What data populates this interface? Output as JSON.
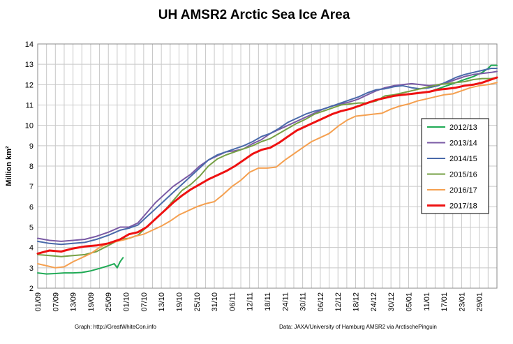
{
  "chart_data": {
    "type": "line",
    "title": "UH AMSR2 Arctic Sea Ice Area",
    "xlabel": "",
    "ylabel": "Million km²",
    "ylim": [
      2,
      14
    ],
    "yticks": [
      "2",
      "3",
      "4",
      "5",
      "6",
      "7",
      "8",
      "9",
      "10",
      "11",
      "12",
      "13",
      "14"
    ],
    "x_tick_labels": [
      "01/09",
      "07/09",
      "13/09",
      "19/09",
      "25/09",
      "01/10",
      "07/10",
      "13/10",
      "19/10",
      "25/10",
      "31/10",
      "06/11",
      "12/11",
      "18/11",
      "24/11",
      "30/11",
      "06/12",
      "12/12",
      "18/12",
      "24/12",
      "30/12",
      "05/01",
      "11/01",
      "17/01",
      "23/01",
      "29/01"
    ],
    "x_unit": "days since 01/09 (tick every 6 days)",
    "xlim": [
      0,
      156
    ],
    "grid": true,
    "legend_position": "right",
    "series": [
      {
        "name": "2012/13",
        "color": "#1faa55",
        "width": 2,
        "points": [
          [
            0,
            2.75
          ],
          [
            3,
            2.7
          ],
          [
            6,
            2.72
          ],
          [
            9,
            2.75
          ],
          [
            12,
            2.75
          ],
          [
            15,
            2.77
          ],
          [
            18,
            2.85
          ],
          [
            21,
            2.97
          ],
          [
            24,
            3.1
          ],
          [
            26,
            3.2
          ],
          [
            27,
            3.0
          ],
          [
            28,
            3.3
          ],
          [
            29,
            3.5
          ],
          [
            null,
            null
          ],
          [
            129,
            11.6
          ],
          [
            133,
            11.65
          ],
          [
            136,
            11.8
          ],
          [
            139,
            11.95
          ],
          [
            142,
            12.1
          ],
          [
            145,
            12.25
          ],
          [
            148,
            12.4
          ],
          [
            151,
            12.6
          ],
          [
            153,
            12.8
          ],
          [
            154,
            12.95
          ],
          [
            156,
            12.95
          ]
        ]
      },
      {
        "name": "2013/14",
        "color": "#7a5aa5",
        "width": 2,
        "points": [
          [
            0,
            4.45
          ],
          [
            4,
            4.35
          ],
          [
            8,
            4.3
          ],
          [
            12,
            4.35
          ],
          [
            16,
            4.4
          ],
          [
            20,
            4.55
          ],
          [
            24,
            4.75
          ],
          [
            28,
            5.0
          ],
          [
            31,
            5.0
          ],
          [
            34,
            5.2
          ],
          [
            37,
            5.7
          ],
          [
            40,
            6.2
          ],
          [
            43,
            6.6
          ],
          [
            46,
            7.0
          ],
          [
            49,
            7.3
          ],
          [
            52,
            7.6
          ],
          [
            55,
            8.0
          ],
          [
            58,
            8.3
          ],
          [
            61,
            8.5
          ],
          [
            64,
            8.7
          ],
          [
            67,
            8.75
          ],
          [
            70,
            8.85
          ],
          [
            73,
            9.1
          ],
          [
            76,
            9.3
          ],
          [
            79,
            9.6
          ],
          [
            82,
            9.8
          ],
          [
            85,
            10.0
          ],
          [
            88,
            10.2
          ],
          [
            91,
            10.4
          ],
          [
            94,
            10.6
          ],
          [
            97,
            10.8
          ],
          [
            100,
            10.95
          ],
          [
            103,
            11.05
          ],
          [
            106,
            11.15
          ],
          [
            109,
            11.3
          ],
          [
            112,
            11.5
          ],
          [
            115,
            11.7
          ],
          [
            118,
            11.85
          ],
          [
            121,
            11.95
          ],
          [
            124,
            12.0
          ],
          [
            127,
            12.05
          ],
          [
            130,
            12.0
          ],
          [
            133,
            11.95
          ],
          [
            136,
            12.0
          ],
          [
            139,
            12.1
          ],
          [
            142,
            12.25
          ],
          [
            145,
            12.4
          ],
          [
            148,
            12.5
          ],
          [
            151,
            12.55
          ],
          [
            154,
            12.6
          ],
          [
            156,
            12.65
          ]
        ]
      },
      {
        "name": "2014/15",
        "color": "#4a6aaa",
        "width": 2,
        "points": [
          [
            0,
            4.3
          ],
          [
            4,
            4.2
          ],
          [
            8,
            4.15
          ],
          [
            12,
            4.2
          ],
          [
            16,
            4.25
          ],
          [
            20,
            4.4
          ],
          [
            24,
            4.6
          ],
          [
            28,
            4.85
          ],
          [
            31,
            4.95
          ],
          [
            34,
            5.1
          ],
          [
            37,
            5.5
          ],
          [
            40,
            5.9
          ],
          [
            43,
            6.3
          ],
          [
            46,
            6.7
          ],
          [
            49,
            7.1
          ],
          [
            52,
            7.5
          ],
          [
            55,
            7.9
          ],
          [
            58,
            8.3
          ],
          [
            61,
            8.55
          ],
          [
            64,
            8.7
          ],
          [
            67,
            8.85
          ],
          [
            70,
            9.0
          ],
          [
            73,
            9.2
          ],
          [
            76,
            9.45
          ],
          [
            79,
            9.6
          ],
          [
            82,
            9.85
          ],
          [
            85,
            10.15
          ],
          [
            88,
            10.35
          ],
          [
            91,
            10.55
          ],
          [
            94,
            10.7
          ],
          [
            97,
            10.8
          ],
          [
            100,
            10.95
          ],
          [
            103,
            11.1
          ],
          [
            106,
            11.25
          ],
          [
            109,
            11.4
          ],
          [
            112,
            11.6
          ],
          [
            115,
            11.75
          ],
          [
            118,
            11.8
          ],
          [
            121,
            11.9
          ],
          [
            124,
            11.95
          ],
          [
            127,
            11.85
          ],
          [
            130,
            11.8
          ],
          [
            133,
            11.85
          ],
          [
            136,
            11.95
          ],
          [
            139,
            12.15
          ],
          [
            142,
            12.35
          ],
          [
            145,
            12.5
          ],
          [
            148,
            12.6
          ],
          [
            151,
            12.7
          ],
          [
            154,
            12.8
          ],
          [
            156,
            12.8
          ]
        ]
      },
      {
        "name": "2015/16",
        "color": "#76a045",
        "width": 2,
        "points": [
          [
            0,
            3.65
          ],
          [
            4,
            3.6
          ],
          [
            8,
            3.55
          ],
          [
            12,
            3.6
          ],
          [
            16,
            3.65
          ],
          [
            20,
            3.8
          ],
          [
            24,
            4.1
          ],
          [
            28,
            4.4
          ],
          [
            31,
            4.45
          ],
          [
            34,
            4.6
          ],
          [
            37,
            5.0
          ],
          [
            40,
            5.4
          ],
          [
            43,
            5.8
          ],
          [
            46,
            6.3
          ],
          [
            49,
            6.8
          ],
          [
            52,
            7.1
          ],
          [
            55,
            7.5
          ],
          [
            58,
            8.0
          ],
          [
            61,
            8.35
          ],
          [
            64,
            8.55
          ],
          [
            67,
            8.7
          ],
          [
            70,
            8.85
          ],
          [
            73,
            9.0
          ],
          [
            76,
            9.2
          ],
          [
            79,
            9.35
          ],
          [
            82,
            9.6
          ],
          [
            85,
            9.85
          ],
          [
            88,
            10.1
          ],
          [
            91,
            10.3
          ],
          [
            94,
            10.55
          ],
          [
            97,
            10.7
          ],
          [
            100,
            10.85
          ],
          [
            103,
            11.0
          ],
          [
            106,
            11.05
          ],
          [
            109,
            11.1
          ],
          [
            112,
            11.1
          ],
          [
            115,
            11.2
          ],
          [
            118,
            11.45
          ],
          [
            121,
            11.5
          ],
          [
            124,
            11.6
          ],
          [
            127,
            11.7
          ],
          [
            130,
            11.8
          ],
          [
            133,
            11.9
          ],
          [
            136,
            12.0
          ],
          [
            139,
            12.05
          ],
          [
            142,
            12.1
          ],
          [
            145,
            12.15
          ],
          [
            148,
            12.25
          ],
          [
            151,
            12.3
          ],
          [
            154,
            12.3
          ],
          [
            156,
            12.35
          ]
        ]
      },
      {
        "name": "2016/17",
        "color": "#f5a050",
        "width": 2,
        "points": [
          [
            0,
            3.2
          ],
          [
            3,
            3.1
          ],
          [
            6,
            3.0
          ],
          [
            9,
            3.05
          ],
          [
            12,
            3.3
          ],
          [
            15,
            3.5
          ],
          [
            18,
            3.7
          ],
          [
            21,
            4.0
          ],
          [
            24,
            4.2
          ],
          [
            27,
            4.3
          ],
          [
            30,
            4.4
          ],
          [
            33,
            4.55
          ],
          [
            36,
            4.65
          ],
          [
            39,
            4.85
          ],
          [
            42,
            5.05
          ],
          [
            45,
            5.3
          ],
          [
            48,
            5.6
          ],
          [
            51,
            5.8
          ],
          [
            54,
            6.0
          ],
          [
            57,
            6.15
          ],
          [
            60,
            6.25
          ],
          [
            63,
            6.6
          ],
          [
            66,
            7.0
          ],
          [
            69,
            7.3
          ],
          [
            72,
            7.7
          ],
          [
            75,
            7.9
          ],
          [
            78,
            7.9
          ],
          [
            81,
            7.95
          ],
          [
            84,
            8.3
          ],
          [
            87,
            8.6
          ],
          [
            90,
            8.9
          ],
          [
            93,
            9.2
          ],
          [
            96,
            9.4
          ],
          [
            99,
            9.6
          ],
          [
            102,
            9.95
          ],
          [
            105,
            10.25
          ],
          [
            108,
            10.45
          ],
          [
            111,
            10.5
          ],
          [
            114,
            10.55
          ],
          [
            117,
            10.6
          ],
          [
            120,
            10.8
          ],
          [
            123,
            10.95
          ],
          [
            126,
            11.05
          ],
          [
            129,
            11.2
          ],
          [
            132,
            11.3
          ],
          [
            135,
            11.4
          ],
          [
            138,
            11.5
          ],
          [
            141,
            11.55
          ],
          [
            144,
            11.7
          ],
          [
            147,
            11.85
          ],
          [
            150,
            11.95
          ],
          [
            153,
            12.0
          ],
          [
            156,
            12.1
          ]
        ]
      },
      {
        "name": "2017/18",
        "color": "#ee1111",
        "width": 3,
        "points": [
          [
            0,
            3.7
          ],
          [
            4,
            3.85
          ],
          [
            8,
            3.8
          ],
          [
            12,
            3.95
          ],
          [
            16,
            4.05
          ],
          [
            20,
            4.1
          ],
          [
            24,
            4.2
          ],
          [
            28,
            4.4
          ],
          [
            31,
            4.65
          ],
          [
            34,
            4.75
          ],
          [
            37,
            5.0
          ],
          [
            40,
            5.4
          ],
          [
            43,
            5.8
          ],
          [
            46,
            6.2
          ],
          [
            49,
            6.55
          ],
          [
            52,
            6.85
          ],
          [
            55,
            7.1
          ],
          [
            58,
            7.35
          ],
          [
            61,
            7.55
          ],
          [
            64,
            7.75
          ],
          [
            67,
            8.0
          ],
          [
            70,
            8.3
          ],
          [
            73,
            8.6
          ],
          [
            76,
            8.8
          ],
          [
            79,
            8.9
          ],
          [
            82,
            9.15
          ],
          [
            85,
            9.45
          ],
          [
            88,
            9.75
          ],
          [
            91,
            9.95
          ],
          [
            94,
            10.15
          ],
          [
            97,
            10.35
          ],
          [
            100,
            10.55
          ],
          [
            103,
            10.7
          ],
          [
            106,
            10.8
          ],
          [
            109,
            10.95
          ],
          [
            112,
            11.1
          ],
          [
            115,
            11.25
          ],
          [
            118,
            11.35
          ],
          [
            121,
            11.45
          ],
          [
            124,
            11.5
          ],
          [
            127,
            11.55
          ],
          [
            130,
            11.6
          ],
          [
            133,
            11.65
          ],
          [
            136,
            11.75
          ],
          [
            139,
            11.8
          ],
          [
            142,
            11.85
          ],
          [
            145,
            11.95
          ],
          [
            148,
            12.0
          ],
          [
            151,
            12.1
          ],
          [
            154,
            12.25
          ],
          [
            156,
            12.35
          ]
        ]
      }
    ]
  },
  "footer": {
    "left": "Graph: http://GreatWhiteCon.info",
    "right": "Data: JAXA/University of Hamburg AMSR2 via  ArctischePinguin"
  }
}
